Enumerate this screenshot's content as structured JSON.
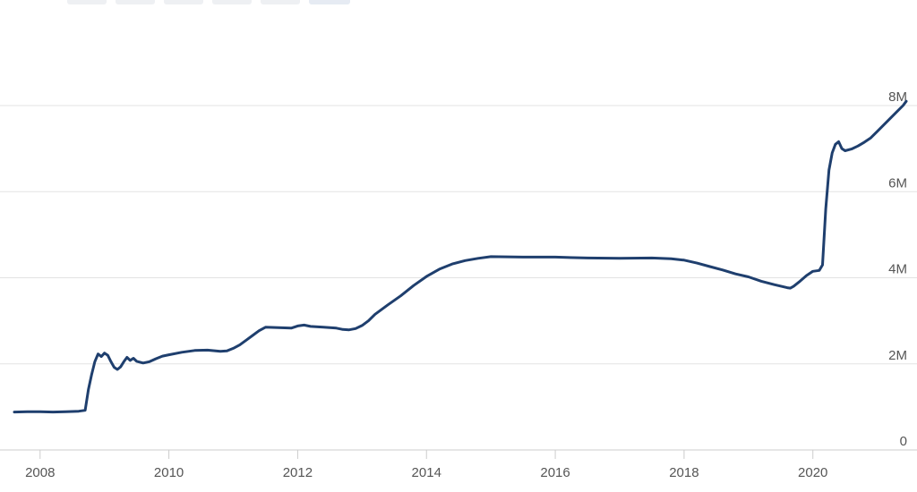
{
  "chart_data": {
    "type": "line",
    "title": "",
    "xlabel": "",
    "ylabel": "",
    "x_range": [
      2007.6,
      2021.45
    ],
    "ylim": [
      0,
      8000000
    ],
    "x_ticks": [
      {
        "value": 2008,
        "label": "2008"
      },
      {
        "value": 2010,
        "label": "2010"
      },
      {
        "value": 2012,
        "label": "2012"
      },
      {
        "value": 2014,
        "label": "2014"
      },
      {
        "value": 2016,
        "label": "2016"
      },
      {
        "value": 2018,
        "label": "2018"
      },
      {
        "value": 2020,
        "label": "2020"
      }
    ],
    "y_ticks": [
      {
        "value": 0,
        "label": "0"
      },
      {
        "value": 2000000,
        "label": "2M"
      },
      {
        "value": 4000000,
        "label": "4M"
      },
      {
        "value": 6000000,
        "label": "6M"
      },
      {
        "value": 8000000,
        "label": "8M"
      }
    ],
    "grid": {
      "horizontal": true,
      "vertical": false
    },
    "legend": "none",
    "colors": {
      "line": "#1f3f6e",
      "grid": "#e3e3e3",
      "axis": "#cccccc",
      "tick_text": "#555555"
    },
    "series": [
      {
        "values": [
          [
            2007.6,
            880000
          ],
          [
            2007.8,
            890000
          ],
          [
            2008.0,
            890000
          ],
          [
            2008.2,
            880000
          ],
          [
            2008.4,
            890000
          ],
          [
            2008.6,
            900000
          ],
          [
            2008.7,
            920000
          ],
          [
            2008.75,
            1400000
          ],
          [
            2008.8,
            1750000
          ],
          [
            2008.85,
            2050000
          ],
          [
            2008.9,
            2230000
          ],
          [
            2008.95,
            2170000
          ],
          [
            2009.0,
            2250000
          ],
          [
            2009.05,
            2200000
          ],
          [
            2009.1,
            2050000
          ],
          [
            2009.15,
            1920000
          ],
          [
            2009.2,
            1870000
          ],
          [
            2009.25,
            1930000
          ],
          [
            2009.3,
            2050000
          ],
          [
            2009.35,
            2150000
          ],
          [
            2009.4,
            2080000
          ],
          [
            2009.45,
            2130000
          ],
          [
            2009.5,
            2060000
          ],
          [
            2009.6,
            2020000
          ],
          [
            2009.7,
            2050000
          ],
          [
            2009.8,
            2120000
          ],
          [
            2009.9,
            2180000
          ],
          [
            2010.0,
            2210000
          ],
          [
            2010.2,
            2270000
          ],
          [
            2010.4,
            2310000
          ],
          [
            2010.6,
            2320000
          ],
          [
            2010.8,
            2290000
          ],
          [
            2010.9,
            2300000
          ],
          [
            2011.0,
            2360000
          ],
          [
            2011.1,
            2440000
          ],
          [
            2011.2,
            2550000
          ],
          [
            2011.3,
            2660000
          ],
          [
            2011.4,
            2770000
          ],
          [
            2011.5,
            2850000
          ],
          [
            2011.7,
            2840000
          ],
          [
            2011.9,
            2830000
          ],
          [
            2012.0,
            2880000
          ],
          [
            2012.1,
            2900000
          ],
          [
            2012.2,
            2870000
          ],
          [
            2012.4,
            2850000
          ],
          [
            2012.6,
            2830000
          ],
          [
            2012.7,
            2800000
          ],
          [
            2012.8,
            2790000
          ],
          [
            2012.9,
            2820000
          ],
          [
            2013.0,
            2890000
          ],
          [
            2013.1,
            3000000
          ],
          [
            2013.2,
            3150000
          ],
          [
            2013.4,
            3370000
          ],
          [
            2013.6,
            3580000
          ],
          [
            2013.8,
            3820000
          ],
          [
            2014.0,
            4030000
          ],
          [
            2014.2,
            4200000
          ],
          [
            2014.4,
            4320000
          ],
          [
            2014.6,
            4400000
          ],
          [
            2014.8,
            4450000
          ],
          [
            2015.0,
            4490000
          ],
          [
            2015.5,
            4480000
          ],
          [
            2016.0,
            4480000
          ],
          [
            2016.5,
            4460000
          ],
          [
            2017.0,
            4450000
          ],
          [
            2017.5,
            4460000
          ],
          [
            2017.8,
            4440000
          ],
          [
            2018.0,
            4410000
          ],
          [
            2018.2,
            4340000
          ],
          [
            2018.4,
            4260000
          ],
          [
            2018.6,
            4180000
          ],
          [
            2018.8,
            4090000
          ],
          [
            2019.0,
            4020000
          ],
          [
            2019.2,
            3920000
          ],
          [
            2019.4,
            3840000
          ],
          [
            2019.6,
            3770000
          ],
          [
            2019.65,
            3760000
          ],
          [
            2019.7,
            3800000
          ],
          [
            2019.8,
            3920000
          ],
          [
            2019.9,
            4050000
          ],
          [
            2020.0,
            4150000
          ],
          [
            2020.1,
            4170000
          ],
          [
            2020.15,
            4300000
          ],
          [
            2020.2,
            5600000
          ],
          [
            2020.25,
            6500000
          ],
          [
            2020.3,
            6900000
          ],
          [
            2020.35,
            7100000
          ],
          [
            2020.4,
            7160000
          ],
          [
            2020.45,
            7000000
          ],
          [
            2020.5,
            6950000
          ],
          [
            2020.6,
            6990000
          ],
          [
            2020.7,
            7060000
          ],
          [
            2020.8,
            7150000
          ],
          [
            2020.9,
            7250000
          ],
          [
            2021.0,
            7400000
          ],
          [
            2021.1,
            7550000
          ],
          [
            2021.2,
            7700000
          ],
          [
            2021.3,
            7850000
          ],
          [
            2021.4,
            8000000
          ],
          [
            2021.45,
            8100000
          ]
        ]
      }
    ]
  }
}
